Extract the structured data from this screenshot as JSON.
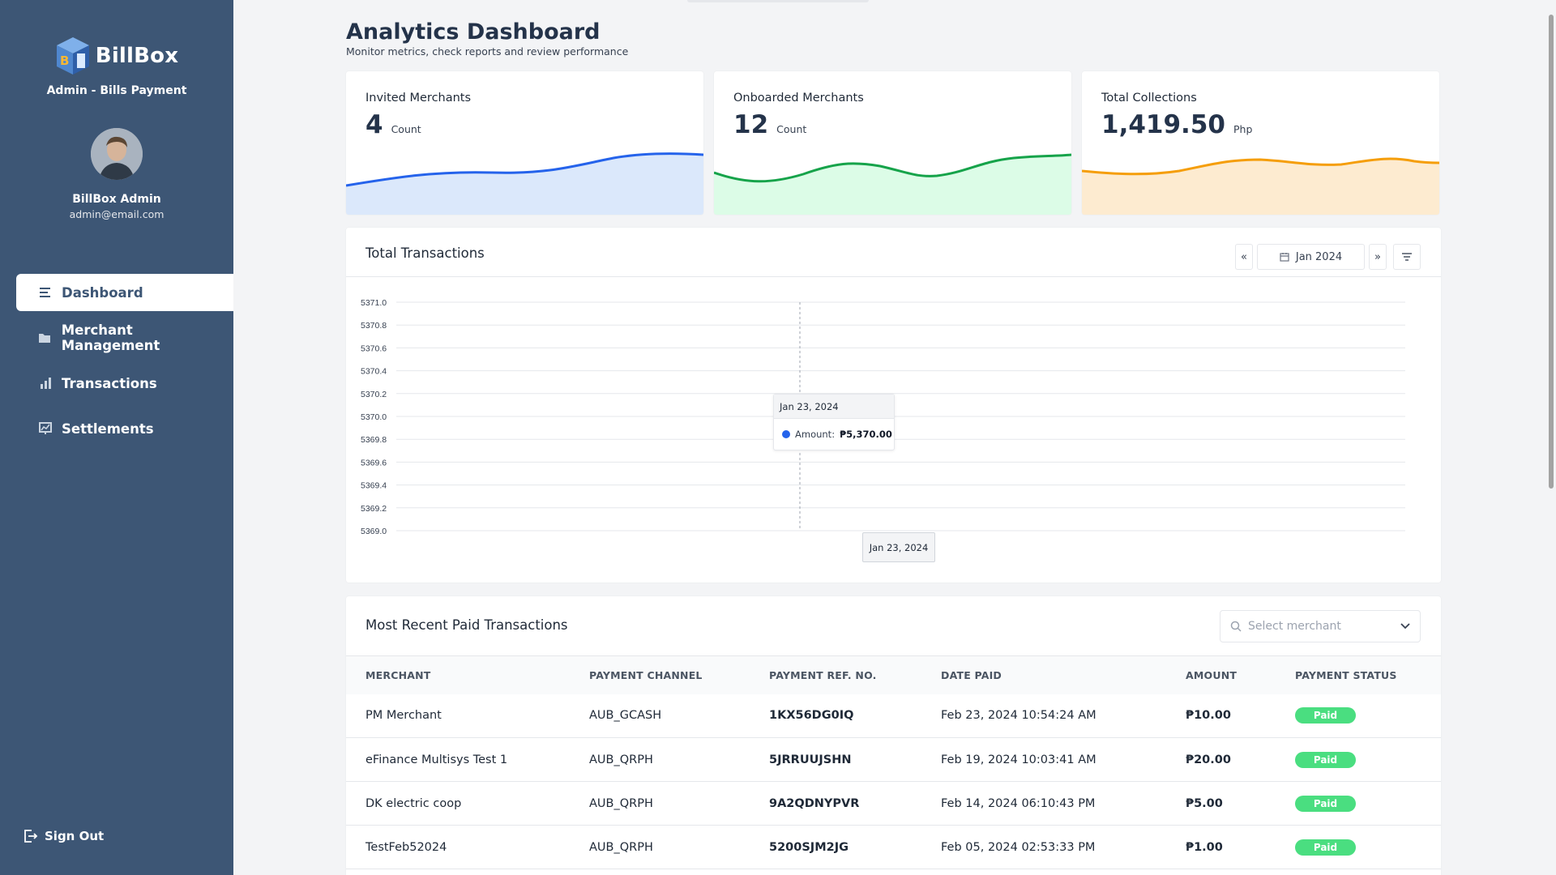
{
  "sidebar": {
    "brand_name": "BillBox",
    "brand_subtitle": "Admin - Bills Payment",
    "user_name": "BillBox Admin",
    "user_email": "admin@email.com",
    "nav": [
      {
        "label": "Dashboard",
        "icon": "list-icon",
        "active": true
      },
      {
        "label": "Merchant Management",
        "icon": "folder-icon",
        "active": false
      },
      {
        "label": "Transactions",
        "icon": "bar-chart-icon",
        "active": false
      },
      {
        "label": "Settlements",
        "icon": "chart-board-icon",
        "active": false
      }
    ],
    "signout_label": "Sign Out"
  },
  "header": {
    "title": "Analytics Dashboard",
    "subtitle": "Monitor metrics, check reports and review performance"
  },
  "stats": [
    {
      "label": "Invited Merchants",
      "value": "4",
      "unit": "Count",
      "color": "#2563eb",
      "fill": "#dbe8fb"
    },
    {
      "label": "Onboarded Merchants",
      "value": "12",
      "unit": "Count",
      "color": "#16a34a",
      "fill": "#dcfce7"
    },
    {
      "label": "Total Collections",
      "value": "1,419.50",
      "unit": "Php",
      "color": "#f59e0b",
      "fill": "#fdebd0"
    }
  ],
  "transactions_chart": {
    "title": "Total Transactions",
    "period_label": "Jan 2024",
    "prev_label": "«",
    "next_label": "»",
    "tooltip": {
      "date": "Jan 23, 2024",
      "series_label": "Amount:",
      "value_label": "₱5,370.00"
    },
    "x_tooltip": "Jan 23, 2024"
  },
  "chart_data": {
    "type": "line",
    "x": [
      "Jan 23, 2024"
    ],
    "series": [
      {
        "name": "Amount",
        "values": [
          5370.0
        ]
      }
    ],
    "title": "Total Transactions",
    "xlabel": "",
    "ylabel": "",
    "ylim": [
      5369.0,
      5371.0
    ],
    "yticks": [
      "5371.0",
      "5370.8",
      "5370.6",
      "5370.4",
      "5370.2",
      "5370.0",
      "5369.8",
      "5369.6",
      "5369.4",
      "5369.2",
      "5369.0"
    ],
    "grid": true,
    "color": "#2563eb"
  },
  "recent": {
    "title": "Most Recent Paid Transactions",
    "select_placeholder": "Select merchant",
    "columns": [
      "MERCHANT",
      "PAYMENT CHANNEL",
      "PAYMENT REF. NO.",
      "DATE PAID",
      "AMOUNT",
      "PAYMENT STATUS"
    ],
    "rows": [
      {
        "merchant": "PM Merchant",
        "channel": "AUB_GCASH",
        "ref": "1KX56DG0IQ",
        "date": "Feb 23, 2024 10:54:24 AM",
        "amount": "₱10.00",
        "status": "Paid"
      },
      {
        "merchant": "eFinance Multisys Test 1",
        "channel": "AUB_QRPH",
        "ref": "5JRRUUJSHN",
        "date": "Feb 19, 2024 10:03:41 AM",
        "amount": "₱20.00",
        "status": "Paid"
      },
      {
        "merchant": "DK electric coop",
        "channel": "AUB_QRPH",
        "ref": "9A2QDNYPVR",
        "date": "Feb 14, 2024 06:10:43 PM",
        "amount": "₱5.00",
        "status": "Paid"
      },
      {
        "merchant": "TestFeb52024",
        "channel": "AUB_QRPH",
        "ref": "5200SJM2JG",
        "date": "Feb 05, 2024 02:53:33 PM",
        "amount": "₱1.00",
        "status": "Paid"
      }
    ],
    "status_color": "#4ade80"
  }
}
